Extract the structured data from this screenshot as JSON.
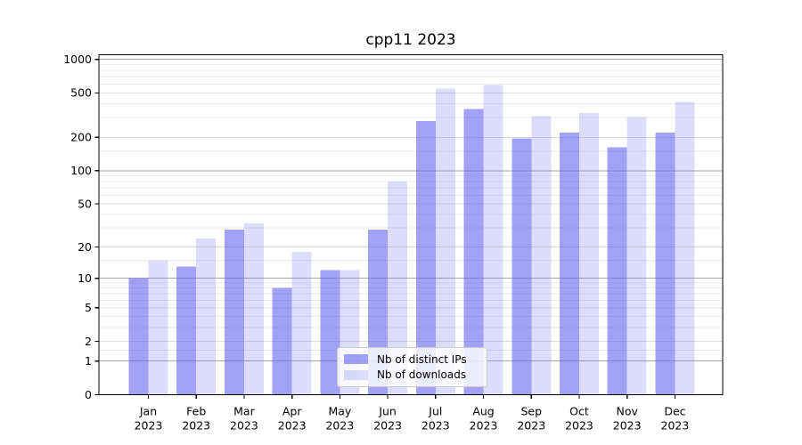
{
  "chart_data": {
    "type": "bar",
    "title": "cpp11 2023",
    "categories": [
      "Jan",
      "Feb",
      "Mar",
      "Apr",
      "May",
      "Jun",
      "Jul",
      "Aug",
      "Sep",
      "Oct",
      "Nov",
      "Dec"
    ],
    "year_label": "2023",
    "series": [
      {
        "name": "Nb of distinct IPs",
        "fill": "rgba(98,98,238,0.60)",
        "display_color": "#a1a1f1",
        "values": [
          10,
          13,
          29,
          8,
          12,
          29,
          280,
          360,
          195,
          220,
          163,
          220
        ]
      },
      {
        "name": "Nb of downloads",
        "fill": "rgba(98,98,238,0.22)",
        "display_color": "#dcdcfa",
        "values": [
          15,
          24,
          33,
          18,
          12,
          80,
          550,
          590,
          310,
          330,
          305,
          415
        ]
      }
    ],
    "yscale": "log1p",
    "ylim": [
      0,
      1100
    ],
    "yticks": [
      0,
      1,
      2,
      5,
      10,
      20,
      50,
      100,
      200,
      500,
      1000
    ],
    "ytick_labels": [
      "0",
      "1",
      "2",
      "5",
      "10",
      "20",
      "50",
      "100",
      "200",
      "500",
      "1000"
    ],
    "grid": {
      "major_values": [
        1,
        10,
        100,
        1000
      ],
      "mid_values": [
        2,
        5,
        20,
        50,
        200,
        500
      ],
      "minor_values": [
        1.5,
        3,
        4,
        6,
        7,
        8,
        9,
        15,
        30,
        40,
        60,
        70,
        80,
        90,
        150,
        300,
        400,
        600,
        700,
        800,
        900
      ],
      "major_color": "#a9a9a9",
      "mid_color": "#dcdcdc",
      "minor_color": "#eaeaea"
    },
    "axis_color": "#000000",
    "legend_position": "lower-center"
  }
}
